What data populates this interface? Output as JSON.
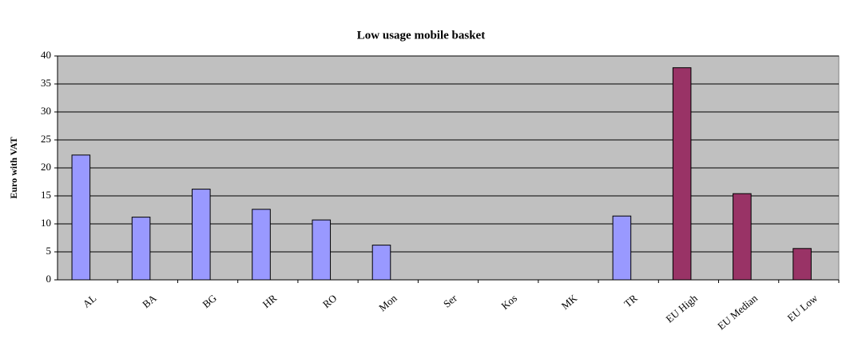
{
  "chart_data": {
    "type": "bar",
    "title": "Low usage mobile basket",
    "y_label": "Euro with VAT",
    "categories": [
      "AL",
      "BA",
      "BG",
      "HR",
      "RO",
      "Mon",
      "Ser",
      "Kos",
      "MK",
      "TR",
      "EU High",
      "EU Median",
      "EU Low"
    ],
    "values": [
      22.3,
      11.2,
      16.2,
      12.6,
      10.7,
      6.2,
      null,
      null,
      null,
      11.4,
      37.9,
      15.4,
      5.6
    ],
    "colors": [
      "#9999ff",
      "#9999ff",
      "#9999ff",
      "#9999ff",
      "#9999ff",
      "#9999ff",
      null,
      null,
      null,
      "#9999ff",
      "#993366",
      "#993366",
      "#993366"
    ],
    "ylim": [
      0,
      40
    ],
    "yticks": [
      0,
      5,
      10,
      15,
      20,
      25,
      30,
      35,
      40
    ],
    "grid": true
  }
}
